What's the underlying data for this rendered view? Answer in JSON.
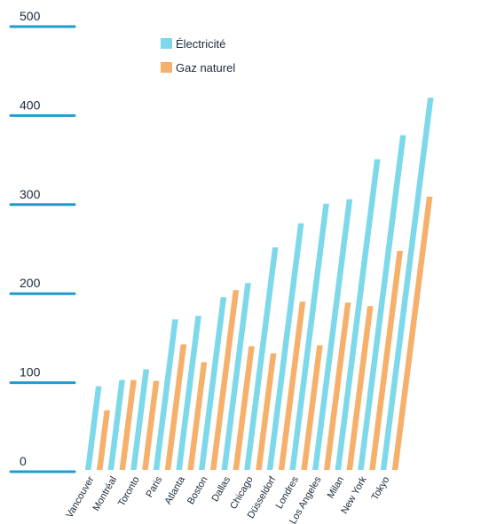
{
  "chart_data": {
    "type": "bar",
    "categories": [
      "Vancouver",
      "Montréal",
      "Toronto",
      "Paris",
      "Atlanta",
      "Boston",
      "Dallas",
      "Chicago",
      "Düsseldorf",
      "Londres",
      "Los Angeles",
      "Milan",
      "New York",
      "Tokyo"
    ],
    "series": [
      {
        "name": "Électricité",
        "color": "#7dd8ea",
        "values": [
          94,
          101,
          113,
          169,
          173,
          194,
          210,
          250,
          277,
          299,
          304,
          349,
          376,
          418
        ]
      },
      {
        "name": "Gaz naturel",
        "color": "#f5b06c",
        "values": [
          67,
          101,
          100,
          141,
          121,
          202,
          139,
          131,
          189,
          140,
          188,
          184,
          246,
          307
        ]
      }
    ],
    "y_ticks": [
      "0",
      "100",
      "200",
      "300",
      "400",
      "500"
    ],
    "ylim": [
      0,
      500
    ],
    "legend_position": "top",
    "grid": false
  }
}
